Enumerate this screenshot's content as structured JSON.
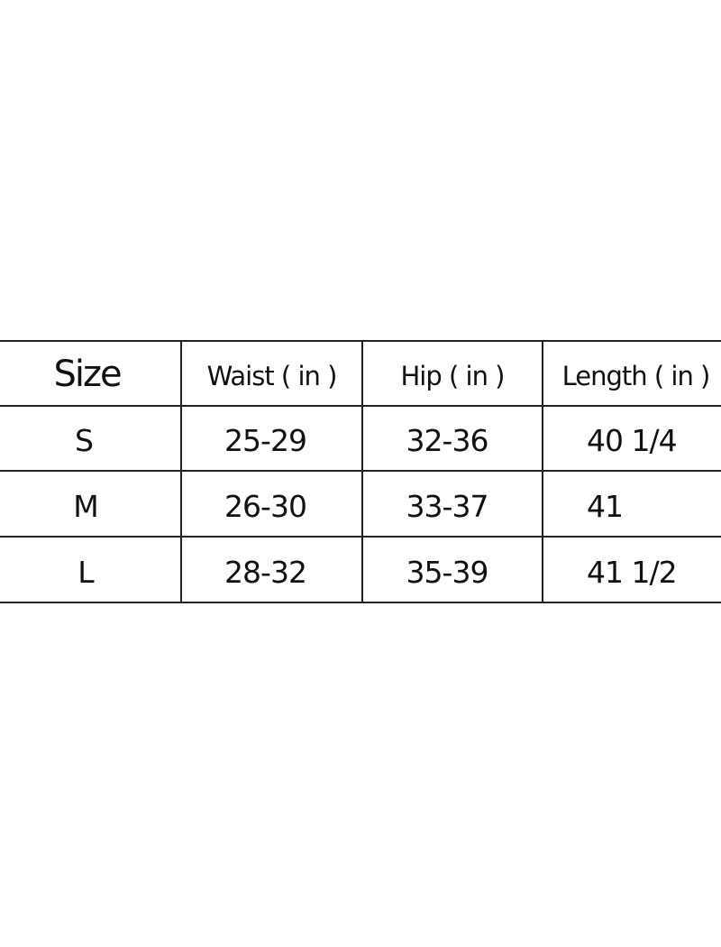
{
  "table": {
    "headers": [
      "Size",
      "Waist ( in )",
      "Hip ( in )",
      "Length ( in )"
    ],
    "rows": [
      [
        "S",
        "25-29",
        "32-36",
        "40 1/4"
      ],
      [
        "M",
        "26-30",
        "33-37",
        "41"
      ],
      [
        "L",
        "28-32",
        "35-39",
        "41 1/2"
      ]
    ]
  }
}
